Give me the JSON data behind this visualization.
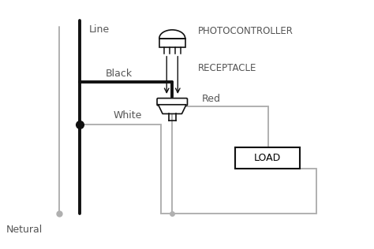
{
  "bg_color": "#ffffff",
  "line_color": "#111111",
  "neutral_color": "#b0b0b0",
  "wire_black_color": "#111111",
  "wire_gray_color": "#b0b0b0",
  "text_color": "#555555",
  "label_line": "Line",
  "label_neutral": "Netural",
  "label_black": "Black",
  "label_white": "White",
  "label_red": "Red",
  "label_load": "LOAD",
  "label_photocontroller": "PHOTOCONTROLLER",
  "label_receptacle": "RECEPTACLE",
  "lw_thick": 2.8,
  "lw_thin": 1.4,
  "lw_symbol": 1.2
}
